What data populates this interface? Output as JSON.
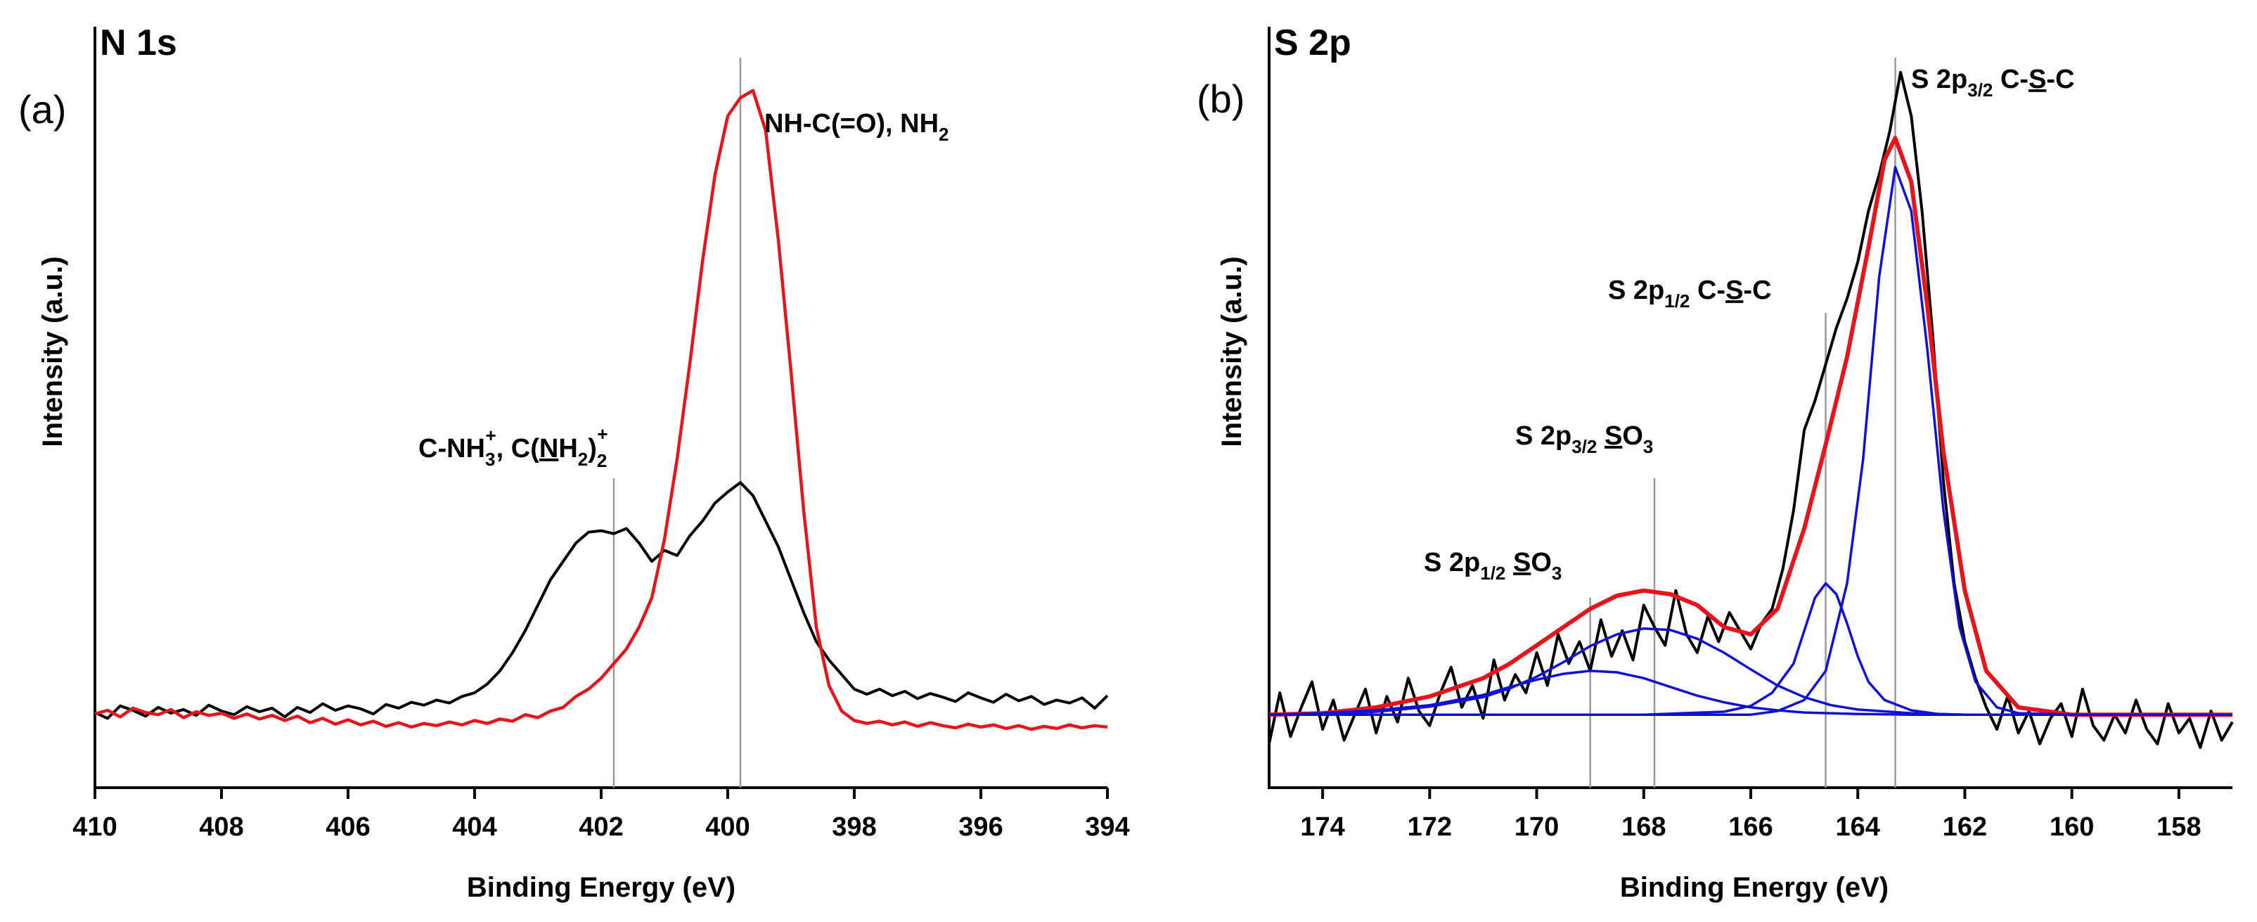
{
  "chart_data": [
    {
      "type": "line",
      "panel_label": "(a)",
      "title": "N 1s",
      "xlabel": "Binding Energy (eV)",
      "ylabel": "Intensity (a.u.)",
      "xlim": [
        410,
        394
      ],
      "ylim": [
        0,
        100
      ],
      "x_reversed": true,
      "grid": false,
      "xticks": [
        410,
        408,
        406,
        404,
        402,
        400,
        398,
        396,
        394
      ],
      "reference_lines": [
        401.8,
        399.8
      ],
      "annotations": [
        {
          "text": "C-NH₃⁺, C(NH₂)₂⁺",
          "x": 401.8
        },
        {
          "text": "NH-C(=O), NH₂",
          "x": 399.8
        }
      ],
      "series": [
        {
          "color": "#000000",
          "x": [
            410.0,
            409.8,
            409.6,
            409.4,
            409.2,
            409.0,
            408.8,
            408.6,
            408.4,
            408.2,
            408.0,
            407.8,
            407.6,
            407.4,
            407.2,
            407.0,
            406.8,
            406.6,
            406.4,
            406.2,
            406.0,
            405.8,
            405.6,
            405.4,
            405.2,
            405.0,
            404.8,
            404.6,
            404.4,
            404.2,
            404.0,
            403.8,
            403.6,
            403.4,
            403.2,
            403.0,
            402.8,
            402.6,
            402.4,
            402.2,
            402.0,
            401.8,
            401.6,
            401.4,
            401.2,
            401.0,
            400.8,
            400.6,
            400.4,
            400.2,
            400.0,
            399.8,
            399.6,
            399.4,
            399.2,
            399.0,
            398.8,
            398.6,
            398.4,
            398.2,
            398.0,
            397.8,
            397.6,
            397.4,
            397.2,
            397.0,
            396.8,
            396.6,
            396.4,
            396.2,
            396.0,
            395.8,
            395.6,
            395.4,
            395.2,
            395.0,
            394.8,
            394.6,
            394.4,
            394.2,
            394.0
          ],
          "y": [
            10.3,
            9.5,
            11.2,
            10.6,
            9.8,
            11.0,
            10.2,
            10.7,
            9.9,
            11.3,
            10.5,
            10.0,
            11.1,
            10.4,
            10.9,
            9.7,
            11.0,
            10.3,
            11.5,
            10.6,
            11.2,
            10.8,
            10.1,
            11.4,
            10.9,
            11.7,
            11.3,
            12.0,
            11.6,
            12.5,
            13.0,
            14.2,
            16.0,
            18.5,
            21.5,
            25.0,
            28.5,
            31.0,
            33.5,
            35.0,
            35.2,
            34.8,
            35.5,
            33.5,
            31.0,
            32.5,
            31.8,
            34.5,
            36.5,
            39.0,
            40.5,
            41.8,
            40.0,
            36.5,
            33.0,
            28.5,
            24.0,
            20.0,
            17.5,
            15.5,
            13.5,
            12.8,
            13.5,
            12.6,
            13.2,
            12.2,
            12.9,
            12.4,
            11.8,
            13.0,
            12.3,
            11.7,
            12.8,
            11.9,
            12.5,
            11.4,
            12.0,
            11.6,
            12.3,
            10.9,
            12.6
          ]
        },
        {
          "color": "#e8141b",
          "x": [
            410.0,
            409.8,
            409.6,
            409.4,
            409.2,
            409.0,
            408.8,
            408.6,
            408.4,
            408.2,
            408.0,
            407.8,
            407.6,
            407.4,
            407.2,
            407.0,
            406.8,
            406.6,
            406.4,
            406.2,
            406.0,
            405.8,
            405.6,
            405.4,
            405.2,
            405.0,
            404.8,
            404.6,
            404.4,
            404.2,
            404.0,
            403.8,
            403.6,
            403.4,
            403.2,
            403.0,
            402.8,
            402.6,
            402.4,
            402.2,
            402.0,
            401.8,
            401.6,
            401.4,
            401.2,
            401.0,
            400.8,
            400.6,
            400.4,
            400.2,
            400.0,
            399.8,
            399.6,
            399.4,
            399.2,
            399.0,
            398.8,
            398.6,
            398.4,
            398.2,
            398.0,
            397.8,
            397.6,
            397.4,
            397.2,
            397.0,
            396.8,
            396.6,
            396.4,
            396.2,
            396.0,
            395.8,
            395.6,
            395.4,
            395.2,
            395.0,
            394.8,
            394.6,
            394.4,
            394.2,
            394.0
          ],
          "y": [
            10.1,
            10.6,
            9.7,
            10.9,
            10.3,
            10.0,
            10.7,
            9.6,
            10.4,
            9.9,
            10.2,
            9.5,
            10.1,
            9.4,
            9.9,
            9.2,
            9.8,
            8.9,
            9.5,
            8.7,
            9.3,
            8.6,
            9.1,
            8.4,
            8.9,
            8.3,
            8.8,
            8.5,
            9.0,
            8.6,
            9.2,
            8.8,
            9.4,
            9.1,
            10.0,
            9.6,
            10.5,
            11.0,
            12.5,
            13.5,
            15.0,
            17.0,
            19.0,
            22.0,
            26.0,
            34.0,
            45.0,
            58.0,
            72.0,
            84.0,
            92.0,
            94.5,
            95.5,
            90.0,
            75.0,
            57.0,
            38.0,
            22.0,
            14.0,
            10.5,
            9.2,
            8.8,
            9.1,
            8.6,
            9.0,
            8.4,
            8.9,
            8.5,
            8.2,
            8.7,
            8.3,
            8.6,
            8.1,
            8.5,
            8.0,
            8.4,
            8.1,
            8.6,
            8.2,
            8.5,
            8.3
          ]
        }
      ]
    },
    {
      "type": "line",
      "panel_label": "(b)",
      "title": "S 2p",
      "xlabel": "Binding Energy (eV)",
      "ylabel": "Intensity (a.u.)",
      "xlim": [
        175,
        157
      ],
      "ylim": [
        0,
        100
      ],
      "x_reversed": true,
      "grid": false,
      "xticks": [
        174,
        172,
        170,
        168,
        166,
        164,
        162,
        160,
        158
      ],
      "reference_lines": [
        169.0,
        167.8,
        164.6,
        163.3
      ],
      "annotations": [
        {
          "text": "S 2p1/2 SO3",
          "x": 169.0
        },
        {
          "text": "S 2p3/2 SO3",
          "x": 167.8
        },
        {
          "text": "S 2p1/2 C-S-C",
          "x": 164.6
        },
        {
          "text": "S 2p3/2 C-S-C",
          "x": 163.3
        }
      ],
      "series": [
        {
          "role": "raw",
          "color": "#000000",
          "x": [
            175.0,
            174.8,
            174.6,
            174.4,
            174.2,
            174.0,
            173.8,
            173.6,
            173.4,
            173.2,
            173.0,
            172.8,
            172.6,
            172.4,
            172.2,
            172.0,
            171.8,
            171.6,
            171.4,
            171.2,
            171.0,
            170.8,
            170.6,
            170.4,
            170.2,
            170.0,
            169.8,
            169.6,
            169.4,
            169.2,
            169.0,
            168.8,
            168.6,
            168.4,
            168.2,
            168.0,
            167.8,
            167.6,
            167.4,
            167.2,
            167.0,
            166.8,
            166.6,
            166.4,
            166.2,
            166.0,
            165.8,
            165.6,
            165.4,
            165.2,
            165.0,
            164.8,
            164.6,
            164.4,
            164.2,
            164.0,
            163.8,
            163.6,
            163.4,
            163.2,
            163.0,
            162.8,
            162.6,
            162.4,
            162.2,
            162.0,
            161.8,
            161.6,
            161.4,
            161.2,
            161.0,
            160.8,
            160.6,
            160.4,
            160.2,
            160.0,
            159.8,
            159.6,
            159.4,
            159.2,
            159.0,
            158.8,
            158.6,
            158.4,
            158.2,
            158.0,
            157.8,
            157.6,
            157.4,
            157.2,
            157.0
          ],
          "y": [
            6.0,
            13.0,
            7.0,
            11.0,
            14.5,
            8.0,
            12.0,
            6.5,
            10.0,
            13.5,
            7.5,
            12.5,
            9.0,
            15.0,
            10.5,
            8.5,
            13.0,
            16.5,
            11.0,
            14.0,
            9.5,
            17.5,
            12.0,
            15.5,
            13.0,
            18.5,
            14.0,
            21.0,
            17.0,
            20.0,
            16.0,
            23.0,
            18.0,
            21.5,
            17.5,
            25.0,
            22.0,
            19.5,
            27.0,
            21.0,
            18.5,
            23.5,
            20.0,
            24.0,
            21.5,
            19.0,
            22.5,
            24.5,
            30.0,
            38.0,
            49.0,
            53.0,
            58.0,
            63.0,
            67.0,
            72.0,
            79.0,
            84.0,
            90.0,
            98.0,
            92.0,
            79.0,
            62.0,
            42.0,
            28.0,
            20.0,
            15.0,
            11.0,
            8.0,
            12.5,
            7.5,
            10.5,
            6.0,
            9.5,
            11.5,
            7.0,
            13.5,
            8.5,
            6.5,
            10.0,
            7.5,
            12.0,
            8.0,
            6.0,
            11.5,
            7.5,
            9.5,
            5.5,
            10.5,
            6.5,
            9.0
          ]
        },
        {
          "role": "envelope",
          "color": "#e8141b",
          "x": [
            175.0,
            174.0,
            173.0,
            172.0,
            171.0,
            170.5,
            170.0,
            169.5,
            169.0,
            168.5,
            168.0,
            167.5,
            167.0,
            166.5,
            166.0,
            165.5,
            165.0,
            164.6,
            164.2,
            163.8,
            163.5,
            163.3,
            163.0,
            162.7,
            162.4,
            162.0,
            161.6,
            161.0,
            160.0,
            159.0,
            158.0,
            157.0
          ],
          "y": [
            10.0,
            10.2,
            11.0,
            12.5,
            15.0,
            17.0,
            19.5,
            22.0,
            24.5,
            26.3,
            27.0,
            26.5,
            25.0,
            22.0,
            21.0,
            24.5,
            35.5,
            47.0,
            59.0,
            74.0,
            86.0,
            89.0,
            83.0,
            66.0,
            46.0,
            27.0,
            16.0,
            11.0,
            10.0,
            10.0,
            10.0,
            10.0
          ]
        },
        {
          "role": "component",
          "color": "#1010d8",
          "x": [
            175.0,
            174.0,
            173.0,
            172.0,
            171.0,
            170.5,
            170.0,
            169.5,
            169.0,
            168.5,
            168.0,
            167.5,
            167.0,
            166.5,
            166.0,
            165.5,
            165.0,
            164.0,
            163.0,
            162.0,
            160.0,
            157.0
          ],
          "y": [
            10.0,
            10.2,
            10.6,
            11.3,
            12.7,
            13.8,
            14.8,
            15.6,
            16.0,
            15.8,
            15.0,
            13.8,
            12.6,
            11.7,
            11.0,
            10.6,
            10.3,
            10.1,
            10.0,
            10.0,
            10.0,
            10.0
          ]
        },
        {
          "role": "component",
          "color": "#1010d8",
          "x": [
            175.0,
            174.0,
            173.0,
            172.0,
            171.0,
            170.5,
            170.0,
            169.5,
            169.0,
            168.5,
            168.0,
            167.5,
            167.0,
            166.5,
            166.0,
            165.5,
            165.0,
            164.5,
            164.0,
            163.0,
            162.0,
            160.0,
            157.0
          ],
          "y": [
            10.0,
            10.1,
            10.4,
            11.1,
            12.4,
            13.6,
            15.2,
            17.2,
            19.4,
            21.0,
            21.8,
            21.6,
            20.4,
            18.5,
            16.2,
            14.0,
            12.4,
            11.3,
            10.7,
            10.2,
            10.0,
            10.0,
            10.0
          ]
        },
        {
          "role": "component",
          "color": "#1010d8",
          "x": [
            175.0,
            168.0,
            166.5,
            166.0,
            165.6,
            165.2,
            165.0,
            164.8,
            164.6,
            164.4,
            164.2,
            164.0,
            163.8,
            163.5,
            163.0,
            162.5,
            162.0,
            160.0,
            157.0
          ],
          "y": [
            10.0,
            10.0,
            10.4,
            11.2,
            13.0,
            17.0,
            21.5,
            26.0,
            28.0,
            26.5,
            22.5,
            18.0,
            14.5,
            12.0,
            10.6,
            10.1,
            10.0,
            10.0,
            10.0
          ]
        },
        {
          "role": "component",
          "color": "#1010d8",
          "x": [
            175.0,
            166.0,
            165.5,
            165.0,
            164.6,
            164.2,
            163.9,
            163.6,
            163.3,
            163.0,
            162.7,
            162.4,
            162.1,
            161.8,
            161.4,
            161.0,
            160.0,
            157.0
          ],
          "y": [
            10.0,
            10.0,
            10.5,
            12.0,
            16.0,
            28.0,
            45.0,
            70.0,
            85.0,
            79.0,
            60.0,
            38.0,
            22.0,
            14.5,
            11.0,
            10.2,
            10.0,
            10.0
          ]
        }
      ]
    }
  ]
}
